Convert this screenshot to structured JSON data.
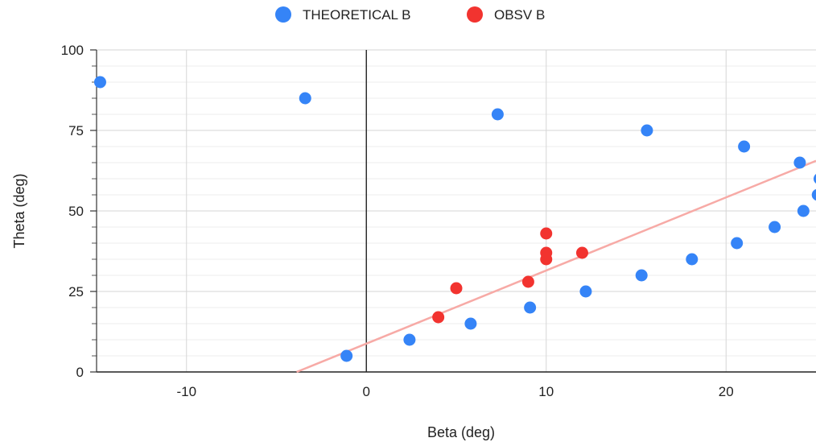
{
  "chart_data": {
    "type": "scatter",
    "title": "",
    "xlabel": "Beta (deg)",
    "ylabel": "Theta (deg)",
    "xlim": [
      -15,
      25
    ],
    "ylim": [
      0,
      100
    ],
    "x_ticks": [
      "-10",
      "0",
      "10",
      "20"
    ],
    "y_ticks": [
      "0",
      "25",
      "50",
      "75",
      "100"
    ],
    "grid": true,
    "legend_position": "top-center",
    "series": [
      {
        "name": "THEORETICAL B",
        "color": "#3584f7",
        "points": [
          [
            -14.8,
            90
          ],
          [
            -3.4,
            85
          ],
          [
            -1.1,
            5
          ],
          [
            2.4,
            10
          ],
          [
            5.8,
            15
          ],
          [
            7.3,
            80
          ],
          [
            9.1,
            20
          ],
          [
            12.2,
            25
          ],
          [
            15.3,
            30
          ],
          [
            15.6,
            75
          ],
          [
            18.1,
            35
          ],
          [
            20.6,
            40
          ],
          [
            21.0,
            70
          ],
          [
            22.7,
            45
          ],
          [
            24.1,
            65
          ],
          [
            24.3,
            50
          ],
          [
            25.1,
            55
          ],
          [
            25.2,
            60
          ]
        ]
      },
      {
        "name": "OBSV B",
        "color": "#f2332f",
        "points": [
          [
            4.0,
            17
          ],
          [
            5.0,
            26
          ],
          [
            9.0,
            28
          ],
          [
            10.0,
            35
          ],
          [
            10.0,
            37
          ],
          [
            10.0,
            43
          ],
          [
            12.0,
            37
          ]
        ]
      }
    ],
    "trendline": {
      "series": "OBSV B",
      "color": "#f7aaa6",
      "slope": 2.27,
      "intercept": 8.8
    }
  }
}
